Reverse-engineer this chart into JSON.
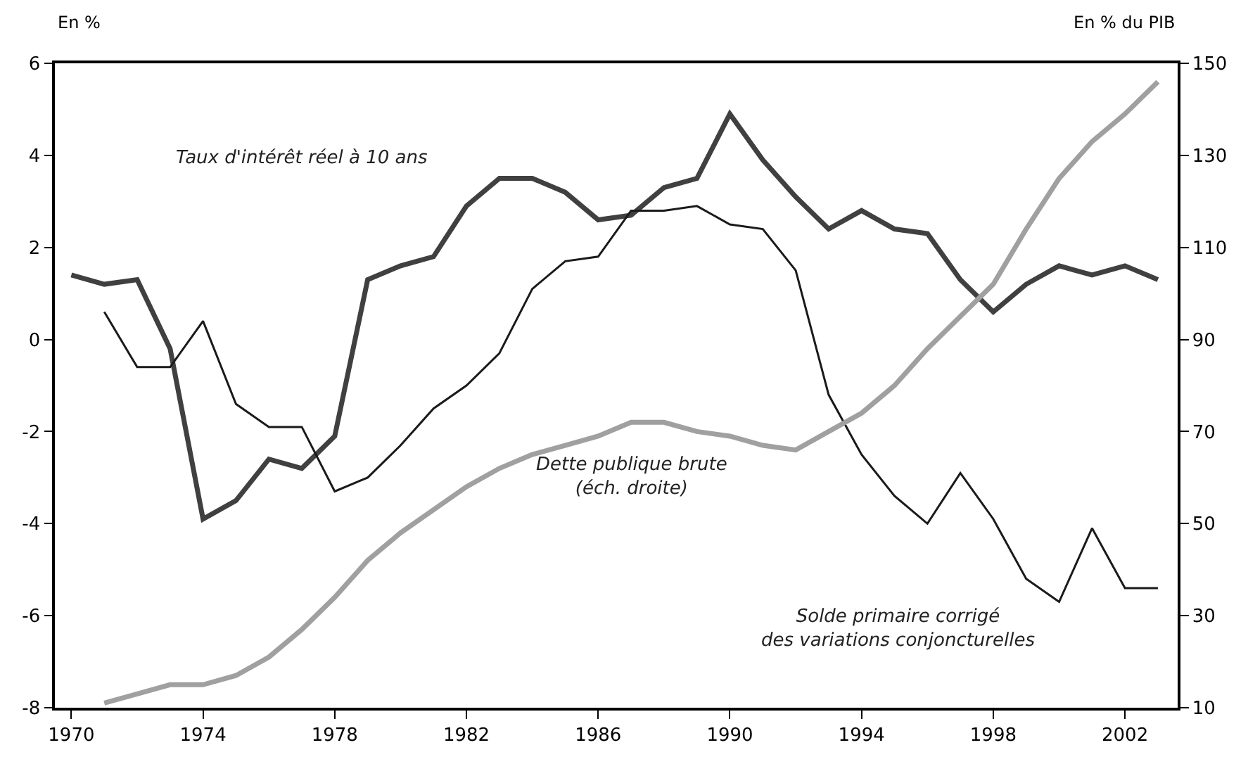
{
  "chart_data": {
    "type": "line",
    "ylabel": "En %",
    "y2label": "En % du PIB",
    "x": [
      1970,
      1971,
      1972,
      1973,
      1974,
      1975,
      1976,
      1977,
      1978,
      1979,
      1980,
      1981,
      1982,
      1983,
      1984,
      1985,
      1986,
      1987,
      1988,
      1989,
      1990,
      1991,
      1992,
      1993,
      1994,
      1995,
      1996,
      1997,
      1998,
      1999,
      2000,
      2001,
      2002,
      2003
    ],
    "series": [
      {
        "name": "Taux d'intérêt réel à 10 ans",
        "color": "#404040",
        "values": [
          1.4,
          1.2,
          1.3,
          -0.2,
          -3.9,
          -3.5,
          -2.6,
          -2.8,
          -2.1,
          1.3,
          1.6,
          1.8,
          2.9,
          3.5,
          3.5,
          3.2,
          2.6,
          2.7,
          3.3,
          3.5,
          4.9,
          3.9,
          3.1,
          2.4,
          2.8,
          2.4,
          2.3,
          1.3,
          0.6,
          1.2,
          1.6,
          1.4,
          1.6,
          1.3
        ]
      },
      {
        "name": "Solde primaire corrigé\ndes variations conjoncturelles",
        "color": "#1a1a1a",
        "values": [
          null,
          0.6,
          -0.6,
          -0.6,
          0.4,
          -1.4,
          -1.9,
          -1.9,
          -3.3,
          -3.0,
          -2.3,
          -1.5,
          -1.0,
          -0.3,
          1.1,
          1.7,
          1.8,
          2.8,
          2.8,
          2.9,
          2.5,
          2.4,
          1.5,
          -1.2,
          -2.5,
          -3.4,
          -4.0,
          -2.9,
          -3.9,
          -5.2,
          -5.7,
          -4.1,
          -5.4,
          -5.4
        ]
      },
      {
        "name": "Dette publique brute\n(éch. droite)",
        "color": "#a0a0a0",
        "axis": "y2",
        "values": [
          null,
          11,
          13,
          15,
          15,
          17,
          21,
          27,
          34,
          42,
          48,
          53,
          58,
          62,
          65,
          67,
          69,
          72,
          72,
          70,
          69,
          67,
          66,
          70,
          74,
          80,
          88,
          95,
          102,
          114,
          125,
          133,
          139,
          146
        ]
      }
    ],
    "xlim": [
      1969.5,
      2003.6
    ],
    "xticks": [
      1970,
      1974,
      1978,
      1982,
      1986,
      1990,
      1994,
      1998,
      2002
    ],
    "ylim": [
      -8,
      6
    ],
    "yticks": [
      -8,
      -6,
      -4,
      -2,
      0,
      2,
      4,
      6
    ],
    "y2lim": [
      10,
      150
    ],
    "y2ticks": [
      10,
      30,
      50,
      70,
      90,
      110,
      130,
      150
    ],
    "legend": false,
    "marker": "none",
    "line_style": "solid"
  }
}
